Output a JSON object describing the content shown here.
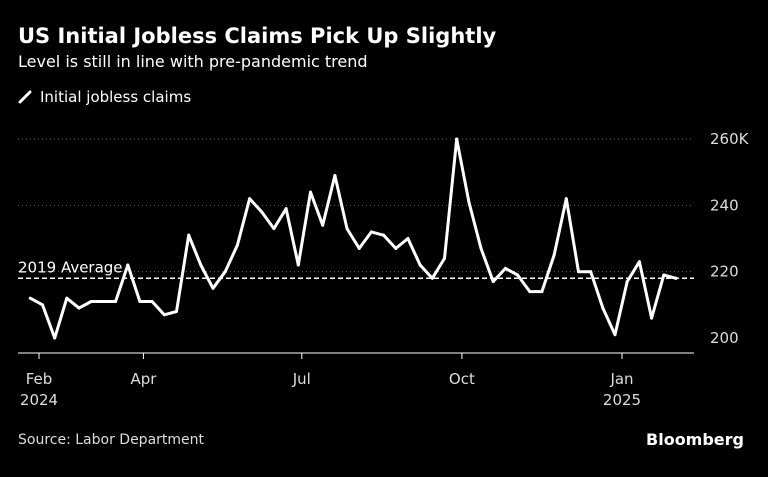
{
  "title": "US Initial Jobless Claims Pick Up Slightly",
  "subtitle": "Level is still in line with pre-pandemic trend",
  "legend_label": "Initial jobless claims",
  "source": "Source: Labor Department",
  "logo": "Bloomberg",
  "colors": {
    "background": "#000000",
    "line": "#ffffff",
    "grid": "#666666",
    "text": "#dddddd"
  },
  "chart_data": {
    "type": "line",
    "series": [
      {
        "name": "Initial jobless claims",
        "x": [
          "2024-01-27",
          "2024-02-03",
          "2024-02-10",
          "2024-02-17",
          "2024-02-24",
          "2024-03-02",
          "2024-03-09",
          "2024-03-16",
          "2024-03-23",
          "2024-03-30",
          "2024-04-06",
          "2024-04-13",
          "2024-04-20",
          "2024-04-27",
          "2024-05-04",
          "2024-05-11",
          "2024-05-18",
          "2024-05-25",
          "2024-06-01",
          "2024-06-08",
          "2024-06-15",
          "2024-06-22",
          "2024-06-29",
          "2024-07-06",
          "2024-07-13",
          "2024-07-20",
          "2024-07-27",
          "2024-08-03",
          "2024-08-10",
          "2024-08-17",
          "2024-08-24",
          "2024-08-31",
          "2024-09-07",
          "2024-09-14",
          "2024-09-21",
          "2024-09-28",
          "2024-10-05",
          "2024-10-12",
          "2024-10-19",
          "2024-10-26",
          "2024-11-02",
          "2024-11-09",
          "2024-11-16",
          "2024-11-23",
          "2024-11-30",
          "2024-12-07",
          "2024-12-14",
          "2024-12-21",
          "2024-12-28",
          "2025-01-04",
          "2025-01-11",
          "2025-01-18",
          "2025-01-25",
          "2025-02-01"
        ],
        "values": [
          212,
          210,
          200,
          212,
          209,
          211,
          211,
          211,
          222,
          211,
          211,
          207,
          208,
          231,
          222,
          215,
          220,
          228,
          242,
          238,
          233,
          239,
          222,
          244,
          234,
          249,
          233,
          227,
          232,
          231,
          227,
          230,
          222,
          218,
          224,
          260,
          241,
          227,
          217,
          221,
          219,
          214,
          214,
          225,
          242,
          220,
          220,
          209,
          201,
          217,
          223,
          206,
          219,
          218
        ]
      }
    ],
    "reference_line": {
      "label": "2019 Average",
      "value": 218
    },
    "x_ticks": [
      {
        "date": "2024-02-01",
        "label": "Feb",
        "sublabel": "2024"
      },
      {
        "date": "2024-04-01",
        "label": "Apr",
        "sublabel": ""
      },
      {
        "date": "2024-07-01",
        "label": "Jul",
        "sublabel": ""
      },
      {
        "date": "2024-10-01",
        "label": "Oct",
        "sublabel": ""
      },
      {
        "date": "2025-01-01",
        "label": "Jan",
        "sublabel": "2025"
      }
    ],
    "y_ticks": [
      {
        "value": 200,
        "label": "200"
      },
      {
        "value": 220,
        "label": "220"
      },
      {
        "value": 240,
        "label": "240"
      },
      {
        "value": 260,
        "label": "260K"
      }
    ],
    "ylim": [
      196,
      260
    ],
    "grid": true,
    "legend": "top-left"
  }
}
